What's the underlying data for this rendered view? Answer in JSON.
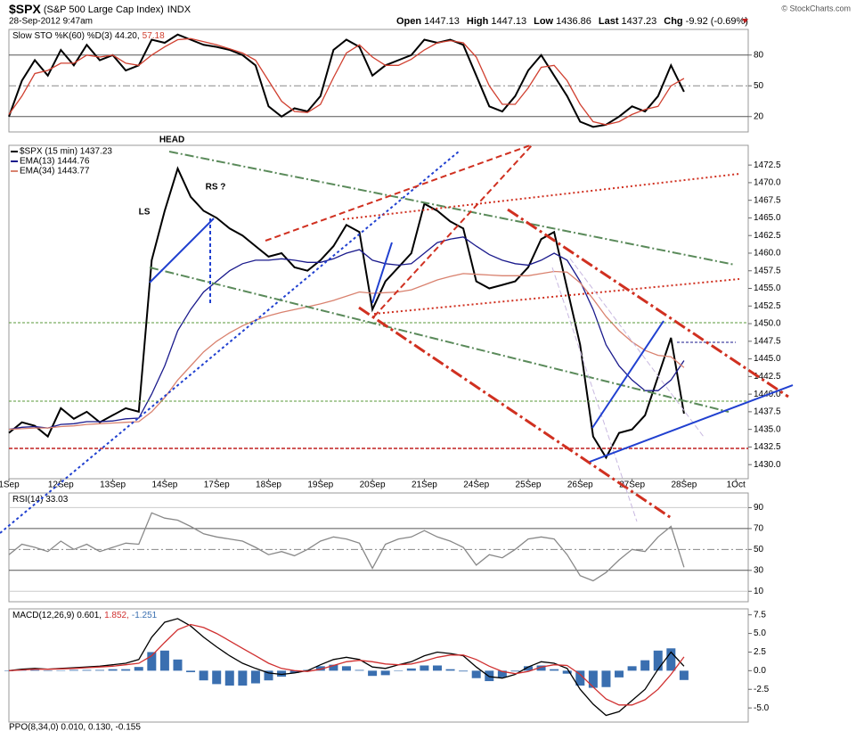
{
  "header": {
    "symbol": "$SPX",
    "name": "(S&P 500 Large Cap Index)",
    "exchange": "INDX",
    "datetime": "28-Sep-2012 9:47am",
    "credit": "© StockCharts.com",
    "quote": [
      {
        "label": "Open",
        "value": "1447.13"
      },
      {
        "label": "High",
        "value": "1447.13"
      },
      {
        "label": "Low",
        "value": "1436.86"
      },
      {
        "label": "Last",
        "value": "1437.23"
      },
      {
        "label": "Chg",
        "value": "-9.92 (-0.69%)"
      }
    ],
    "ppo_label": "PPO(8,34,0) 0.010, 0.130, -0.155"
  },
  "chart_data": [
    {
      "type": "line",
      "ylim": [
        5,
        105
      ],
      "yticks": [
        20,
        50,
        80
      ],
      "grid": true,
      "series": [
        {
          "name": "Slow STO %K(60) %D(3) 44.20,",
          "color": "#000000",
          "values": [
            20,
            55,
            75,
            60,
            85,
            70,
            90,
            75,
            80,
            65,
            70,
            95,
            92,
            100,
            95,
            90,
            88,
            85,
            80,
            70,
            30,
            20,
            28,
            25,
            40,
            85,
            95,
            88,
            60,
            70,
            75,
            80,
            95,
            92,
            95,
            90,
            60,
            30,
            25,
            40,
            65,
            80,
            60,
            40,
            15,
            10,
            12,
            20,
            30,
            25,
            40,
            70,
            44.2
          ]
        },
        {
          "name": "57.18",
          "color": "#d04030",
          "values": [
            22,
            40,
            62,
            65,
            72,
            72,
            80,
            78,
            80,
            72,
            70,
            80,
            88,
            95,
            96,
            93,
            90,
            86,
            82,
            75,
            55,
            35,
            25,
            24,
            32,
            58,
            82,
            90,
            78,
            70,
            70,
            76,
            85,
            92,
            94,
            92,
            78,
            50,
            32,
            32,
            48,
            68,
            70,
            55,
            32,
            15,
            12,
            15,
            22,
            27,
            30,
            50,
            57.18
          ]
        }
      ]
    },
    {
      "type": "line",
      "categories": [
        "1Sep",
        null,
        null,
        null,
        "12Sep",
        null,
        null,
        null,
        "13Sep",
        null,
        null,
        null,
        "14Sep",
        null,
        null,
        null,
        "17Sep",
        null,
        null,
        null,
        "18Sep",
        null,
        null,
        null,
        "19Sep",
        null,
        null,
        null,
        "20Sep",
        null,
        null,
        null,
        "21Sep",
        null,
        null,
        null,
        "24Sep",
        null,
        null,
        null,
        "25Sep",
        null,
        null,
        null,
        "26Sep",
        null,
        null,
        null,
        "27Sep",
        null,
        null,
        null,
        "28Sep",
        null,
        null,
        null,
        "1Oct"
      ],
      "ylim": [
        1428,
        1475.3
      ],
      "yticks": [
        {
          "value": 1430,
          "label": "1430.0"
        },
        1432.5,
        {
          "value": 1435,
          "label": "1435.0"
        },
        1437.5,
        {
          "value": 1440,
          "label": "1440.0"
        },
        1442.5,
        {
          "value": 1445,
          "label": "1445.0"
        },
        1447.5,
        {
          "value": 1450,
          "label": "1450.0"
        },
        1452.5,
        {
          "value": 1455,
          "label": "1455.0"
        },
        1457.5,
        {
          "value": 1460,
          "label": "1460.0"
        },
        1462.5,
        {
          "value": 1465,
          "label": "1465.0"
        },
        1467.5,
        {
          "value": 1470,
          "label": "1470.0"
        },
        1472.5
      ],
      "grid": false,
      "annotations": [
        "HEAD",
        "LS",
        "RS ?"
      ],
      "series": [
        {
          "name": "$SPX (15 min) 1437.23",
          "color": "#000000",
          "values": [
            1434.5,
            1436,
            1435.5,
            1434,
            1438,
            1436.5,
            1437.5,
            1436,
            1437,
            1438,
            1437.5,
            1459,
            1466,
            1472,
            1468,
            1466,
            1465,
            1463.5,
            1462.5,
            1461,
            1459.5,
            1460,
            1458,
            1457.5,
            1459,
            1461,
            1464,
            1463,
            1452,
            1456,
            1458,
            1460,
            1467,
            1466,
            1464.5,
            1463.5,
            1456,
            1455,
            1455.5,
            1456,
            1458,
            1462,
            1463,
            1455,
            1447,
            1434,
            1431,
            1434.5,
            1435,
            1437,
            1442.5,
            1448,
            1437.23,
            null,
            null,
            null,
            null
          ]
        },
        {
          "name": "EMA(13) 1444.76",
          "color": "#1a1a8c",
          "values": [
            1435,
            1435.3,
            1435.4,
            1435.2,
            1435.7,
            1435.8,
            1436.1,
            1436.1,
            1436.2,
            1436.5,
            1436.6,
            1440,
            1444,
            1449,
            1452,
            1454.5,
            1456,
            1457.5,
            1458.5,
            1459,
            1459,
            1459.2,
            1459,
            1458.7,
            1458.7,
            1459.2,
            1460,
            1460.5,
            1459,
            1458.5,
            1458.3,
            1458.5,
            1460,
            1461.5,
            1462,
            1462.3,
            1461,
            1459.8,
            1459,
            1458.5,
            1458.3,
            1459,
            1460,
            1459,
            1456,
            1452,
            1447,
            1444,
            1442,
            1440.5,
            1440.5,
            1442,
            1444.76,
            null,
            null,
            null,
            null
          ]
        },
        {
          "name": "EMA(34) 1443.77",
          "color": "#d9826f",
          "values": [
            1435,
            1435.1,
            1435.2,
            1435.2,
            1435.4,
            1435.5,
            1435.7,
            1435.8,
            1435.9,
            1436,
            1436.1,
            1437.5,
            1439.5,
            1442,
            1444,
            1446,
            1447.5,
            1448.7,
            1449.7,
            1450.5,
            1451.1,
            1451.6,
            1452,
            1452.4,
            1452.8,
            1453.3,
            1453.9,
            1454.5,
            1454.3,
            1454.4,
            1454.5,
            1454.8,
            1455.5,
            1456.2,
            1456.7,
            1457.1,
            1457,
            1456.9,
            1456.8,
            1456.8,
            1456.8,
            1457.1,
            1457.4,
            1457.3,
            1455.8,
            1453.5,
            1451,
            1449,
            1447.4,
            1446.2,
            1445.5,
            1445.3,
            1443.77,
            null,
            null,
            null,
            null
          ]
        }
      ]
    },
    {
      "type": "line",
      "ylim": [
        0,
        104
      ],
      "yticks": [
        10,
        30,
        50,
        70,
        90
      ],
      "grid": true,
      "series": [
        {
          "name": "RSI(14) 33.03",
          "color": "#888888",
          "values": [
            45,
            55,
            52,
            48,
            58,
            50,
            55,
            48,
            52,
            56,
            55,
            85,
            80,
            78,
            72,
            65,
            62,
            60,
            58,
            52,
            45,
            48,
            44,
            50,
            58,
            62,
            60,
            56,
            32,
            55,
            60,
            62,
            68,
            62,
            58,
            52,
            35,
            45,
            42,
            50,
            60,
            62,
            60,
            45,
            25,
            20,
            28,
            40,
            50,
            48,
            62,
            72,
            33.03
          ]
        }
      ]
    },
    {
      "type": "line",
      "ylim": [
        -6.9,
        8.3
      ],
      "yticks": [
        7.5,
        {
          "value": 5,
          "label": "5.0"
        },
        2.5,
        {
          "value": 0,
          "label": "0.0"
        },
        -2.5,
        {
          "value": -5,
          "label": "-5.0"
        }
      ],
      "grid": false,
      "series": [
        {
          "name": "-1.251",
          "type": "bar",
          "color": "#3a6fb0",
          "values": [
            0,
            0.1,
            0.1,
            0,
            0.05,
            0.1,
            0.1,
            0.1,
            0.2,
            0.2,
            0.5,
            2.5,
            2.7,
            1.5,
            -0.2,
            -1.3,
            -1.8,
            -2.0,
            -2.0,
            -1.7,
            -1.3,
            -0.8,
            -0.3,
            0.1,
            0.6,
            0.8,
            0.6,
            0.1,
            -0.7,
            -0.6,
            0,
            0.3,
            0.7,
            0.7,
            0.2,
            -0.1,
            -1.0,
            -1.4,
            -0.9,
            -0.1,
            0.6,
            0.7,
            0.2,
            -0.4,
            -2.0,
            -2.3,
            -2.2,
            -0.9,
            0.6,
            1.4,
            2.7,
            3.0,
            -1.251
          ]
        },
        {
          "name": "MACD(12,26,9) 0.601,",
          "color": "#000000",
          "values": [
            0,
            0.2,
            0.3,
            0.2,
            0.3,
            0.4,
            0.5,
            0.6,
            0.8,
            1.0,
            1.5,
            4.5,
            6.5,
            7.0,
            6.0,
            4.5,
            3.2,
            2.0,
            1.0,
            0.3,
            -0.3,
            -0.5,
            -0.3,
            0,
            0.8,
            1.5,
            1.8,
            1.5,
            0.5,
            0.3,
            0.8,
            1.2,
            2.0,
            2.5,
            2.3,
            2.0,
            0.5,
            -0.8,
            -1.0,
            -0.5,
            0.5,
            1.2,
            1.0,
            0.3,
            -2.5,
            -4.5,
            -6.0,
            -5.5,
            -4.0,
            -2.5,
            0.2,
            2.5,
            0.601
          ]
        },
        {
          "name": "1.852,",
          "color": "#d03030",
          "values": [
            0,
            0.1,
            0.2,
            0.2,
            0.25,
            0.3,
            0.4,
            0.5,
            0.6,
            0.8,
            1.0,
            2.0,
            3.8,
            5.5,
            6.2,
            5.8,
            5.0,
            4.0,
            3.0,
            2.0,
            1.0,
            0.3,
            0,
            -0.1,
            0.2,
            0.7,
            1.2,
            1.4,
            1.2,
            0.9,
            0.8,
            0.9,
            1.3,
            1.8,
            2.1,
            2.1,
            1.5,
            0.6,
            -0.1,
            -0.4,
            -0.1,
            0.5,
            0.8,
            0.7,
            -0.5,
            -2.2,
            -3.8,
            -4.6,
            -4.6,
            -3.9,
            -2.5,
            -0.5,
            1.852
          ]
        }
      ]
    }
  ]
}
